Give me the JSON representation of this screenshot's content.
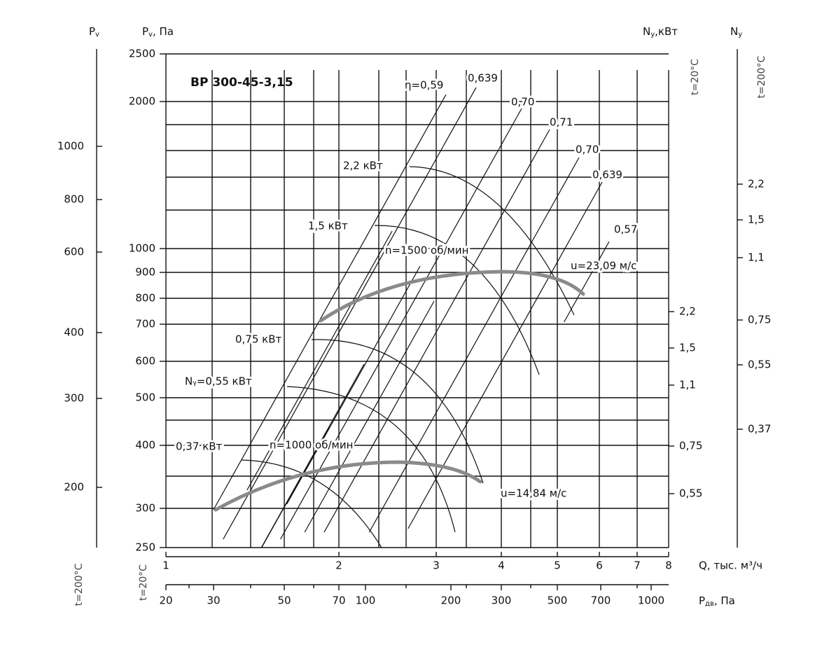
{
  "title": "ВР 300-45-3,15",
  "axes": {
    "pv_outer": {
      "label": {
        "main": "P",
        "sub": "v"
      },
      "ticks": [
        "1000",
        "800",
        "600",
        "400",
        "300",
        "200"
      ],
      "temperature": "t=200°C"
    },
    "pv_inner": {
      "label": {
        "main": "P",
        "sub": "v",
        "rest": ", Па"
      },
      "ticks": [
        "2500",
        "2000",
        "1000",
        "900",
        "800",
        "700",
        "600",
        "500",
        "400",
        "300",
        "250"
      ],
      "temperature": "t=20°C"
    },
    "ny_20": {
      "label": {
        "main": "N",
        "sub": "у",
        "rest": ",кВт"
      },
      "ticks": [
        "2,2",
        "1,5",
        "1,1",
        "0,75",
        "0,55"
      ],
      "temperature": "t=20°C"
    },
    "ny_200": {
      "label": {
        "main": "N",
        "sub": "у"
      },
      "ticks": [
        "2,2",
        "1,5",
        "1,1",
        "0,75",
        "0,55",
        "0,37"
      ],
      "temperature": "t=200°C"
    },
    "q": {
      "label": "Q, тыс. м³/ч",
      "ticks": [
        "1",
        "2",
        "3",
        "4",
        "5",
        "6",
        "7",
        "8"
      ]
    },
    "pdv": {
      "label": {
        "main": "P",
        "sub": "дв",
        "rest": ", Па"
      },
      "ticks": [
        "20",
        "30",
        "50",
        "70",
        "100",
        "200",
        "300",
        "500",
        "700",
        "1000"
      ]
    }
  },
  "efficiency": [
    "η=0,59",
    "0,639",
    "0,70",
    "0,71",
    "0,70",
    "0,639",
    "0,57"
  ],
  "power": [
    "2,2 кВт",
    "1,5 кВт",
    "0,75 кВт",
    "Nᵧ=0,55 кВт",
    "0,37 кВт"
  ],
  "speeds": [
    {
      "label": "n=1500 об/мин",
      "tip": "u=23,09 м/с"
    },
    {
      "label": "n=1000 об/мин",
      "tip": "u=14,84 м/с"
    }
  ]
}
